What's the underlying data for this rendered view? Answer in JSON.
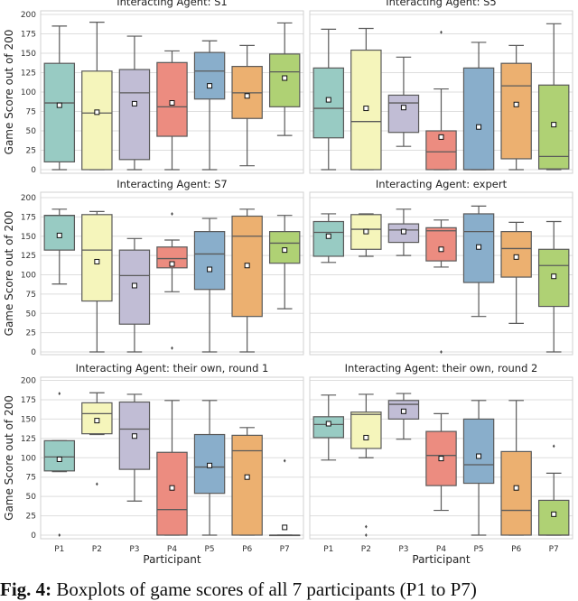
{
  "caption": {
    "label": "Fig. 4:",
    "text": "Boxplots of game scores of all 7 participants (P1 to P7)"
  },
  "colors": [
    "#98cbc3",
    "#f5f5bb",
    "#c1bdd5",
    "#ec8c80",
    "#89aecb",
    "#ecb070",
    "#afd174"
  ],
  "chart_data": [
    {
      "type": "box",
      "title": "Interacting Agent: S1",
      "ylabel": "Game Score out of 200",
      "ylim": [
        0,
        200
      ],
      "yticks": [
        "0",
        "25",
        "50",
        "75",
        "100",
        "125",
        "150",
        "175",
        "200"
      ],
      "grid": true,
      "boxes": [
        {
          "whislo": 0,
          "q1": 10,
          "med": 86,
          "q3": 137,
          "whishi": 185,
          "mean": 83,
          "fliers": []
        },
        {
          "whislo": 0,
          "q1": 0,
          "med": 73,
          "q3": 127,
          "whishi": 190,
          "mean": 74,
          "fliers": []
        },
        {
          "whislo": 0,
          "q1": 13,
          "med": 99,
          "q3": 129,
          "whishi": 172,
          "mean": 85,
          "fliers": []
        },
        {
          "whislo": 0,
          "q1": 43,
          "med": 81,
          "q3": 138,
          "whishi": 153,
          "mean": 86,
          "fliers": []
        },
        {
          "whislo": 0,
          "q1": 91,
          "med": 127,
          "q3": 151,
          "whishi": 166,
          "mean": 108,
          "fliers": []
        },
        {
          "whislo": 5,
          "q1": 66,
          "med": 99,
          "q3": 133,
          "whishi": 160,
          "mean": 95,
          "fliers": []
        },
        {
          "whislo": 44,
          "q1": 81,
          "med": 126,
          "q3": 149,
          "whishi": 189,
          "mean": 118,
          "fliers": []
        }
      ]
    },
    {
      "type": "box",
      "title": "Interacting Agent: S5",
      "ylim": [
        0,
        200
      ],
      "grid": true,
      "boxes": [
        {
          "whislo": 0,
          "q1": 41,
          "med": 79,
          "q3": 131,
          "whishi": 181,
          "mean": 90,
          "fliers": []
        },
        {
          "whislo": 0,
          "q1": 0,
          "med": 62,
          "q3": 154,
          "whishi": 182,
          "mean": 79,
          "fliers": []
        },
        {
          "whislo": 30,
          "q1": 48,
          "med": 86,
          "q3": 96,
          "whishi": 145,
          "mean": 80,
          "fliers": []
        },
        {
          "whislo": 0,
          "q1": 0,
          "med": 23,
          "q3": 50,
          "whishi": 104,
          "mean": 42,
          "fliers": [
            177
          ]
        },
        {
          "whislo": 0,
          "q1": 0,
          "med": 0,
          "q3": 131,
          "whishi": 164,
          "mean": 55,
          "fliers": []
        },
        {
          "whislo": 0,
          "q1": 14,
          "med": 108,
          "q3": 137,
          "whishi": 160,
          "mean": 84,
          "fliers": []
        },
        {
          "whislo": 0,
          "q1": 1,
          "med": 17,
          "q3": 109,
          "whishi": 188,
          "mean": 58,
          "fliers": []
        }
      ]
    },
    {
      "type": "box",
      "title": "Interacting Agent: S7",
      "ylabel": "Game Score out of 200",
      "ylim": [
        0,
        200
      ],
      "yticks": [
        "0",
        "25",
        "50",
        "75",
        "100",
        "125",
        "150",
        "175",
        "200"
      ],
      "grid": true,
      "boxes": [
        {
          "whislo": 88,
          "q1": 132,
          "med": 177,
          "q3": 177,
          "whishi": 185,
          "mean": 151,
          "fliers": []
        },
        {
          "whislo": 0,
          "q1": 66,
          "med": 132,
          "q3": 178,
          "whishi": 182,
          "mean": 117,
          "fliers": []
        },
        {
          "whislo": 0,
          "q1": 36,
          "med": 99,
          "q3": 132,
          "whishi": 147,
          "mean": 86,
          "fliers": []
        },
        {
          "whislo": 78,
          "q1": 109,
          "med": 121,
          "q3": 136,
          "whishi": 145,
          "mean": 114,
          "fliers": [
            179,
            5
          ]
        },
        {
          "whislo": 0,
          "q1": 81,
          "med": 127,
          "q3": 156,
          "whishi": 173,
          "mean": 107,
          "fliers": []
        },
        {
          "whislo": 0,
          "q1": 46,
          "med": 150,
          "q3": 176,
          "whishi": 185,
          "mean": 112,
          "fliers": []
        },
        {
          "whislo": 56,
          "q1": 115,
          "med": 141,
          "q3": 156,
          "whishi": 177,
          "mean": 132,
          "fliers": []
        }
      ]
    },
    {
      "type": "box",
      "title": "Interacting Agent: expert",
      "ylim": [
        0,
        200
      ],
      "grid": true,
      "boxes": [
        {
          "whislo": 116,
          "q1": 124,
          "med": 155,
          "q3": 169,
          "whishi": 179,
          "mean": 150,
          "fliers": []
        },
        {
          "whislo": 124,
          "q1": 133,
          "med": 159,
          "q3": 178,
          "whishi": 179,
          "mean": 156,
          "fliers": []
        },
        {
          "whislo": 125,
          "q1": 142,
          "med": 158,
          "q3": 166,
          "whishi": 185,
          "mean": 156,
          "fliers": []
        },
        {
          "whislo": 110,
          "q1": 118,
          "med": 157,
          "q3": 161,
          "whishi": 171,
          "mean": 133,
          "fliers": [
            0
          ]
        },
        {
          "whislo": 46,
          "q1": 90,
          "med": 156,
          "q3": 179,
          "whishi": 189,
          "mean": 136,
          "fliers": []
        },
        {
          "whislo": 37,
          "q1": 97,
          "med": 134,
          "q3": 156,
          "whishi": 168,
          "mean": 123,
          "fliers": []
        },
        {
          "whislo": 0,
          "q1": 59,
          "med": 112,
          "q3": 133,
          "whishi": 169,
          "mean": 98,
          "fliers": []
        }
      ]
    },
    {
      "type": "box",
      "title": "Interacting Agent: their own, round 1",
      "ylabel": "Game Score out of 200",
      "xlabel": "Participant",
      "categories": [
        "P1",
        "P2",
        "P3",
        "P4",
        "P5",
        "P6",
        "P7"
      ],
      "ylim": [
        0,
        200
      ],
      "yticks": [
        "0",
        "25",
        "50",
        "75",
        "100",
        "125",
        "150",
        "175",
        "200"
      ],
      "grid": true,
      "boxes": [
        {
          "whislo": 82,
          "q1": 83,
          "med": 101,
          "q3": 122,
          "whishi": 122,
          "mean": 98,
          "fliers": [
            183,
            0
          ]
        },
        {
          "whislo": 130,
          "q1": 131,
          "med": 157,
          "q3": 171,
          "whishi": 184,
          "mean": 148,
          "fliers": [
            66
          ]
        },
        {
          "whislo": 44,
          "q1": 85,
          "med": 137,
          "q3": 172,
          "whishi": 182,
          "mean": 128,
          "fliers": []
        },
        {
          "whislo": 0,
          "q1": 0,
          "med": 33,
          "q3": 107,
          "whishi": 174,
          "mean": 61,
          "fliers": []
        },
        {
          "whislo": 0,
          "q1": 54,
          "med": 88,
          "q3": 130,
          "whishi": 174,
          "mean": 90,
          "fliers": []
        },
        {
          "whislo": 0,
          "q1": 0,
          "med": 109,
          "q3": 129,
          "whishi": 139,
          "mean": 75,
          "fliers": []
        },
        {
          "whislo": 0,
          "q1": 0,
          "med": 0,
          "q3": 0,
          "whishi": 0,
          "mean": 10,
          "fliers": [
            96
          ]
        }
      ]
    },
    {
      "type": "box",
      "title": "Interacting Agent: their own, round 2",
      "xlabel": "Participant",
      "categories": [
        "P1",
        "P2",
        "P3",
        "P4",
        "P5",
        "P6",
        "P7"
      ],
      "ylim": [
        0,
        200
      ],
      "grid": true,
      "boxes": [
        {
          "whislo": 97,
          "q1": 126,
          "med": 143,
          "q3": 153,
          "whishi": 181,
          "mean": 144,
          "fliers": []
        },
        {
          "whislo": 100,
          "q1": 112,
          "med": 156,
          "q3": 159,
          "whishi": 182,
          "mean": 126,
          "fliers": [
            11,
            0
          ]
        },
        {
          "whislo": 124,
          "q1": 150,
          "med": 169,
          "q3": 174,
          "whishi": 183,
          "mean": 160,
          "fliers": []
        },
        {
          "whislo": 32,
          "q1": 64,
          "med": 103,
          "q3": 134,
          "whishi": 157,
          "mean": 99,
          "fliers": []
        },
        {
          "whislo": 0,
          "q1": 67,
          "med": 91,
          "q3": 150,
          "whishi": 174,
          "mean": 102,
          "fliers": []
        },
        {
          "whislo": 0,
          "q1": 0,
          "med": 32,
          "q3": 108,
          "whishi": 174,
          "mean": 61,
          "fliers": []
        },
        {
          "whislo": 0,
          "q1": 0,
          "med": 0,
          "q3": 45,
          "whishi": 80,
          "mean": 27,
          "fliers": [
            115
          ]
        }
      ]
    }
  ]
}
